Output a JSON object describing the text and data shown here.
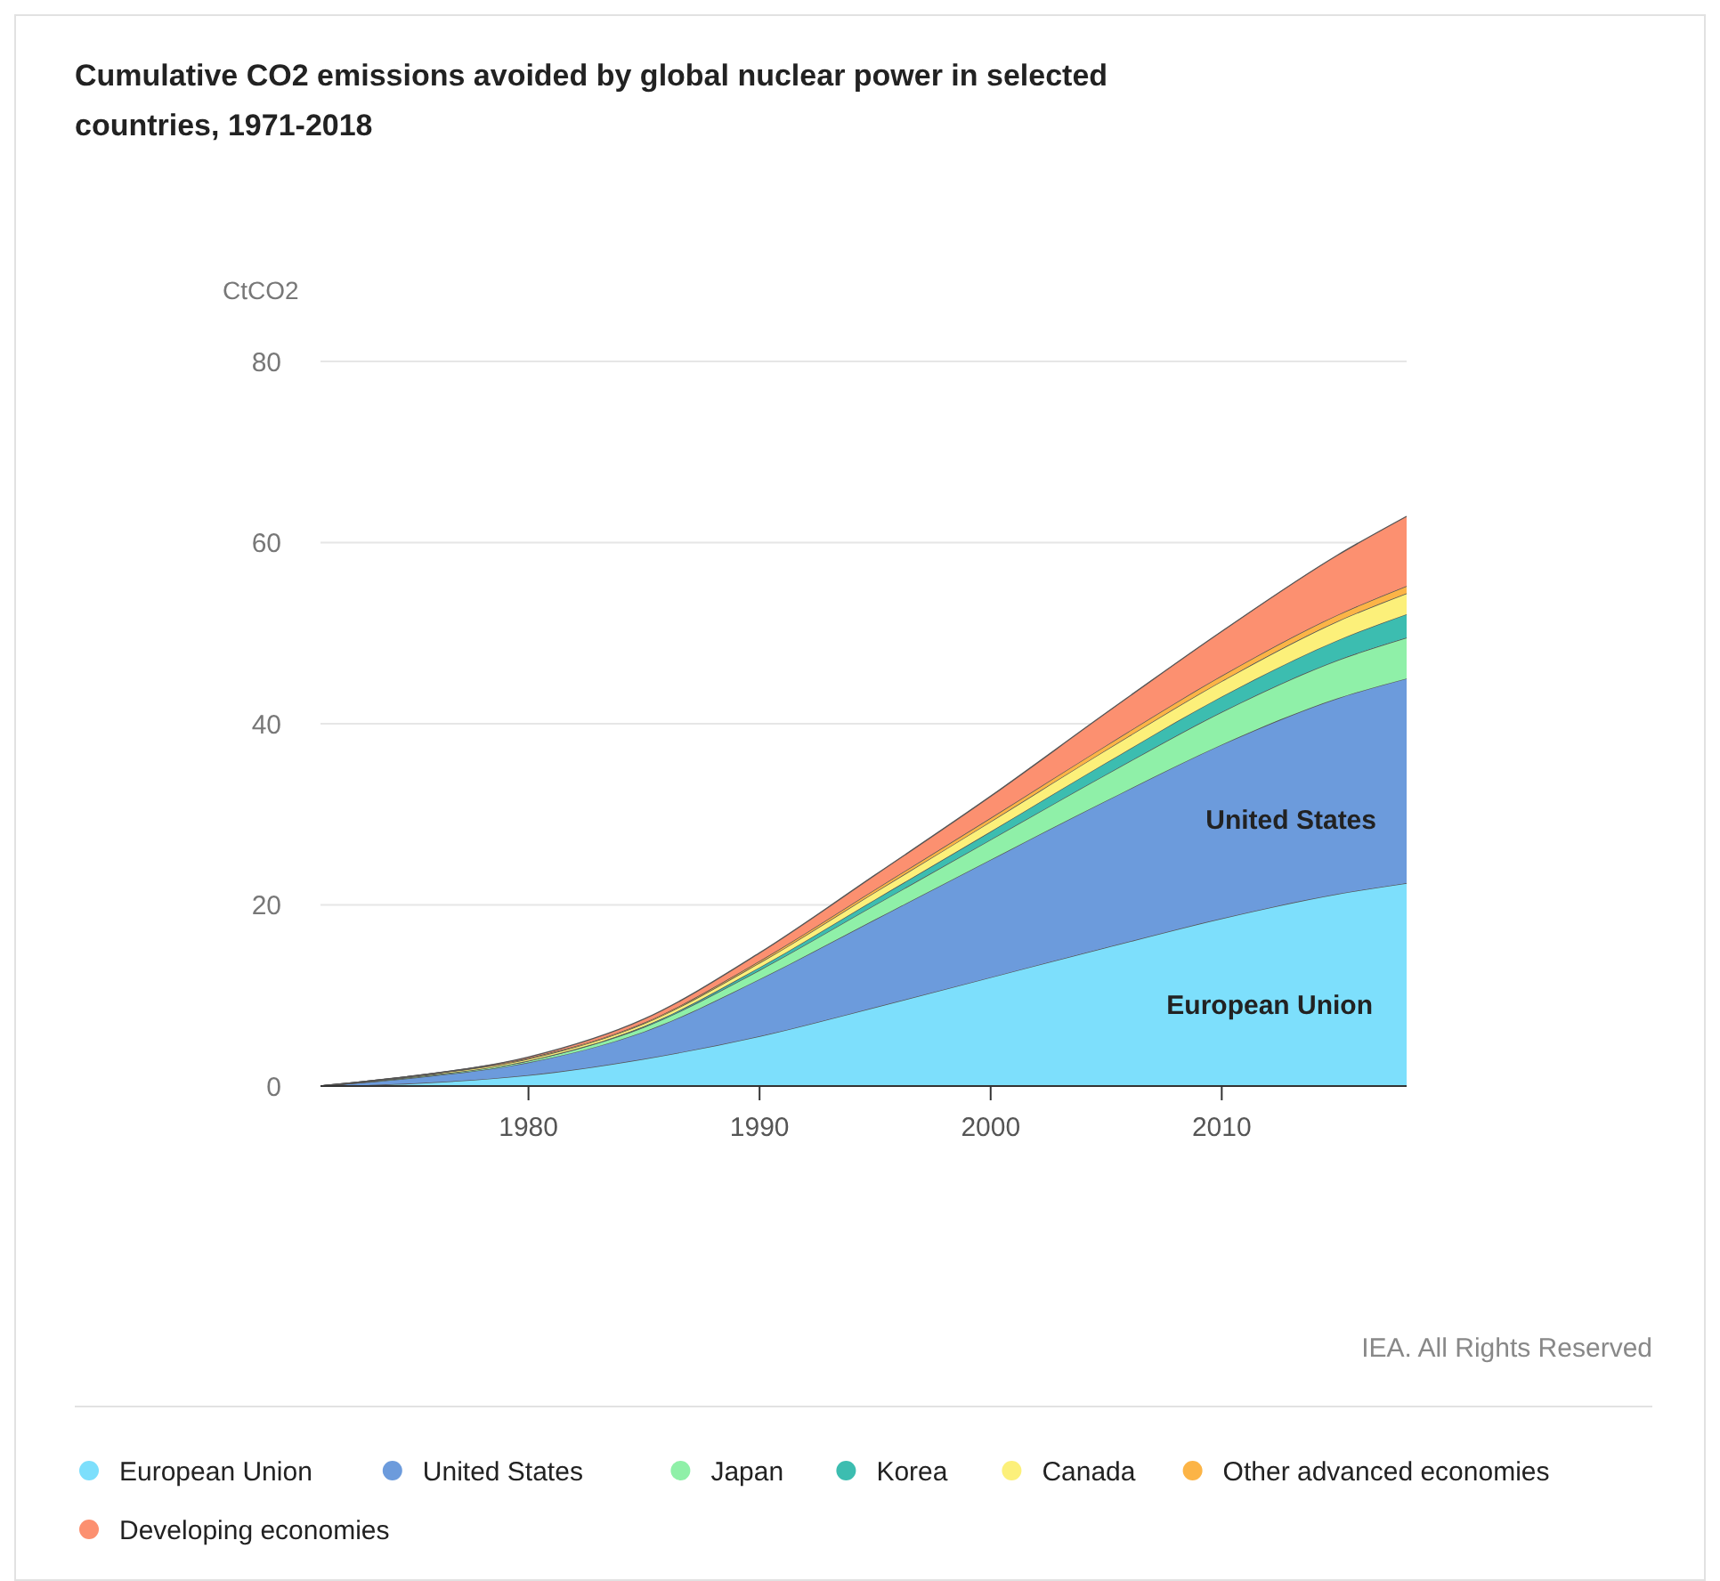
{
  "chart_data": {
    "type": "area",
    "stacked": true,
    "title": "Cumulative CO2 emissions avoided by global nuclear power in selected countries, 1971-2018",
    "ylabel": "CtCO2",
    "x": [
      1971,
      1975,
      1980,
      1985,
      1990,
      1995,
      2000,
      2005,
      2010,
      2015,
      2018
    ],
    "series": [
      {
        "name": "European Union",
        "color": "#7ddffc",
        "values": [
          0,
          0.3,
          1.2,
          3.0,
          5.5,
          8.7,
          12.0,
          15.3,
          18.5,
          21.2,
          22.4
        ]
      },
      {
        "name": "United States",
        "color": "#6c9bdc",
        "values": [
          0,
          0.6,
          1.4,
          3.0,
          6.3,
          9.7,
          13.0,
          16.2,
          19.2,
          21.6,
          22.6
        ]
      },
      {
        "name": "Japan",
        "color": "#8ff0a8",
        "values": [
          0,
          0.1,
          0.2,
          0.5,
          1.0,
          1.6,
          2.2,
          2.9,
          3.6,
          4.2,
          4.5
        ]
      },
      {
        "name": "Korea",
        "color": "#3cbdb0",
        "values": [
          0,
          0,
          0,
          0.1,
          0.3,
          0.6,
          0.9,
          1.3,
          1.7,
          2.2,
          2.6
        ]
      },
      {
        "name": "Canada",
        "color": "#fcf07a",
        "values": [
          0,
          0.1,
          0.2,
          0.3,
          0.5,
          0.8,
          1.1,
          1.4,
          1.7,
          2.1,
          2.3
        ]
      },
      {
        "name": "Other advanced economies",
        "color": "#fcb446",
        "values": [
          0,
          0,
          0.1,
          0.1,
          0.2,
          0.3,
          0.4,
          0.5,
          0.6,
          0.7,
          0.8
        ]
      },
      {
        "name": "Developing economies",
        "color": "#fc9070",
        "values": [
          0,
          0,
          0.1,
          0.4,
          0.9,
          1.6,
          2.4,
          3.6,
          4.9,
          6.6,
          7.7
        ]
      }
    ],
    "xlim": [
      1971,
      2018
    ],
    "xticks": [
      1980,
      1990,
      2000,
      2010
    ],
    "ylim": [
      0,
      80
    ],
    "yticks": [
      0,
      20,
      40,
      60,
      80
    ],
    "grid": "y",
    "legend": "bottom",
    "annotations": [
      "United States",
      "European Union",
      "IEA. All Rights Reserved"
    ]
  }
}
